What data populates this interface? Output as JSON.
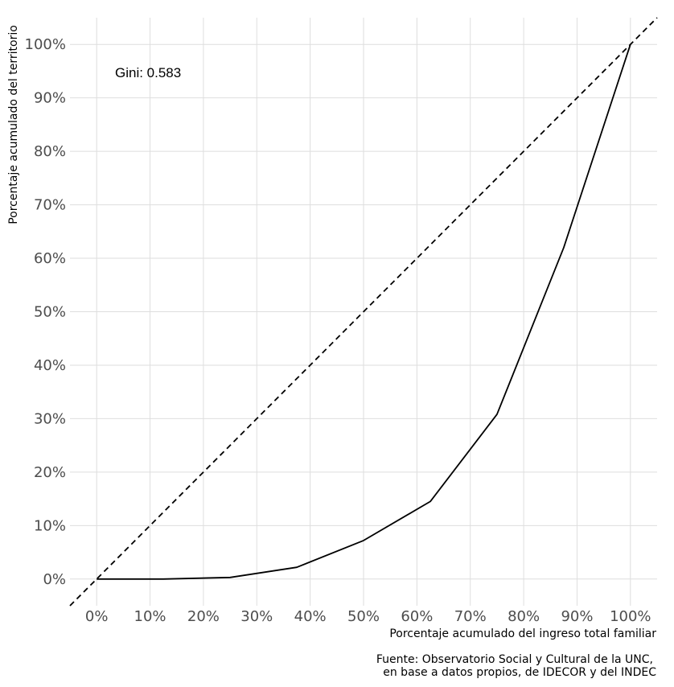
{
  "chart_data": {
    "type": "line",
    "title": "",
    "xlabel": "Porcentaje acumulado del ingreso total familiar",
    "ylabel": "Porcentaje acumulado del territorio",
    "xlim": [
      -0.05,
      1.05
    ],
    "ylim": [
      -0.05,
      1.05
    ],
    "x_ticks": [
      0,
      0.1,
      0.2,
      0.3,
      0.4,
      0.5,
      0.6,
      0.7,
      0.8,
      0.9,
      1.0
    ],
    "x_tick_labels": [
      "0%",
      "10%",
      "20%",
      "30%",
      "40%",
      "50%",
      "60%",
      "70%",
      "80%",
      "90%",
      "100%"
    ],
    "y_ticks": [
      0,
      0.1,
      0.2,
      0.3,
      0.4,
      0.5,
      0.6,
      0.7,
      0.8,
      0.9,
      1.0
    ],
    "y_tick_labels": [
      "0%",
      "10%",
      "20%",
      "30%",
      "40%",
      "50%",
      "60%",
      "70%",
      "80%",
      "90%",
      "100%"
    ],
    "grid": true,
    "series": [
      {
        "style": "solid",
        "color": "#000000",
        "x": [
          0,
          0.125,
          0.25,
          0.375,
          0.5,
          0.625,
          0.75,
          0.875,
          1.0
        ],
        "y": [
          0,
          0,
          0.003,
          0.022,
          0.072,
          0.145,
          0.308,
          0.62,
          1.0
        ]
      },
      {
        "style": "dashed",
        "color": "#000000",
        "x": [
          -0.05,
          1.05
        ],
        "y": [
          -0.05,
          1.05
        ]
      }
    ],
    "annotation": "Gini: 0.583",
    "caption_lines": [
      "Fuente: Observatorio Social y Cultural de la UNC,",
      "en base a datos propios, de IDECOR y del INDEC"
    ]
  }
}
